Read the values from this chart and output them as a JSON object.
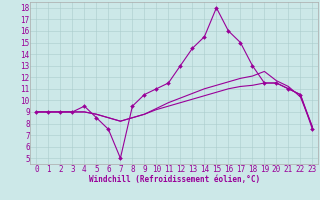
{
  "xlabel": "Windchill (Refroidissement éolien,°C)",
  "background_color": "#cce8e8",
  "line_color": "#990099",
  "grid_color": "#aacccc",
  "xlim": [
    -0.5,
    23.5
  ],
  "ylim": [
    4.5,
    18.5
  ],
  "yticks": [
    5,
    6,
    7,
    8,
    9,
    10,
    11,
    12,
    13,
    14,
    15,
    16,
    17,
    18
  ],
  "xticks": [
    0,
    1,
    2,
    3,
    4,
    5,
    6,
    7,
    8,
    9,
    10,
    11,
    12,
    13,
    14,
    15,
    16,
    17,
    18,
    19,
    20,
    21,
    22,
    23
  ],
  "curve1_x": [
    0,
    1,
    2,
    3,
    4,
    5,
    6,
    7,
    8,
    9,
    10,
    11,
    12,
    13,
    14,
    15,
    16,
    17,
    18,
    19,
    20,
    21,
    22,
    23
  ],
  "curve1_y": [
    9.0,
    9.0,
    9.0,
    9.0,
    9.5,
    8.5,
    7.5,
    5.0,
    9.5,
    10.5,
    11.0,
    11.5,
    13.0,
    14.5,
    15.5,
    18.0,
    16.0,
    15.0,
    13.0,
    11.5,
    11.5,
    11.0,
    10.5,
    7.5
  ],
  "curve2_x": [
    0,
    1,
    2,
    3,
    4,
    5,
    6,
    7,
    8,
    9,
    10,
    11,
    12,
    13,
    14,
    15,
    16,
    17,
    18,
    19,
    20,
    21,
    22,
    23
  ],
  "curve2_y": [
    9.0,
    9.0,
    9.0,
    9.0,
    9.0,
    8.8,
    8.5,
    8.2,
    8.5,
    8.8,
    9.3,
    9.8,
    10.2,
    10.6,
    11.0,
    11.3,
    11.6,
    11.9,
    12.1,
    12.5,
    11.7,
    11.2,
    10.3,
    7.7
  ],
  "curve3_x": [
    0,
    1,
    2,
    3,
    4,
    5,
    6,
    7,
    8,
    9,
    10,
    11,
    12,
    13,
    14,
    15,
    16,
    17,
    18,
    19,
    20,
    21,
    22,
    23
  ],
  "curve3_y": [
    9.0,
    9.0,
    9.0,
    9.0,
    9.0,
    8.8,
    8.5,
    8.2,
    8.5,
    8.8,
    9.2,
    9.5,
    9.8,
    10.1,
    10.4,
    10.7,
    11.0,
    11.2,
    11.3,
    11.5,
    11.5,
    11.0,
    10.5,
    7.7
  ],
  "tick_fontsize": 5.5,
  "xlabel_fontsize": 5.5
}
